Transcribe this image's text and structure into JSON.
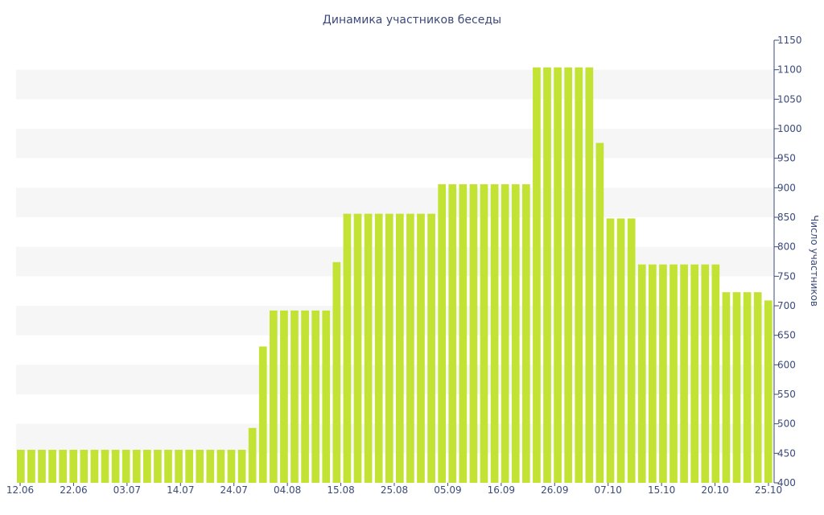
{
  "chart_data": {
    "type": "bar",
    "title": "Динамика участников беседы",
    "xlabel": "",
    "ylabel": "Число участников",
    "y_axis_side": "right",
    "ylim": [
      400,
      1150
    ],
    "y_ticks": [
      400,
      450,
      500,
      550,
      600,
      650,
      700,
      750,
      800,
      850,
      900,
      950,
      1000,
      1050,
      1100,
      1150
    ],
    "grid": "alternating horizontal bands",
    "bar_color": "#c2e234",
    "x_tick_labels": [
      "12.06",
      "22.06",
      "03.07",
      "14.07",
      "24.07",
      "04.08",
      "15.08",
      "25.08",
      "05.09",
      "16.09",
      "26.09",
      "07.10",
      "15.10",
      "20.10",
      "25.10"
    ],
    "values": [
      456,
      456,
      456,
      456,
      456,
      456,
      456,
      456,
      456,
      456,
      456,
      456,
      456,
      456,
      456,
      456,
      456,
      456,
      456,
      456,
      456,
      456,
      493,
      631,
      692,
      692,
      692,
      692,
      692,
      692,
      774,
      856,
      856,
      856,
      856,
      856,
      856,
      856,
      856,
      856,
      906,
      906,
      906,
      906,
      906,
      906,
      906,
      906,
      906,
      1104,
      1104,
      1104,
      1104,
      1104,
      1104,
      976,
      848,
      848,
      848,
      770,
      770,
      770,
      770,
      770,
      770,
      770,
      770,
      723,
      723,
      723,
      723,
      709
    ]
  }
}
